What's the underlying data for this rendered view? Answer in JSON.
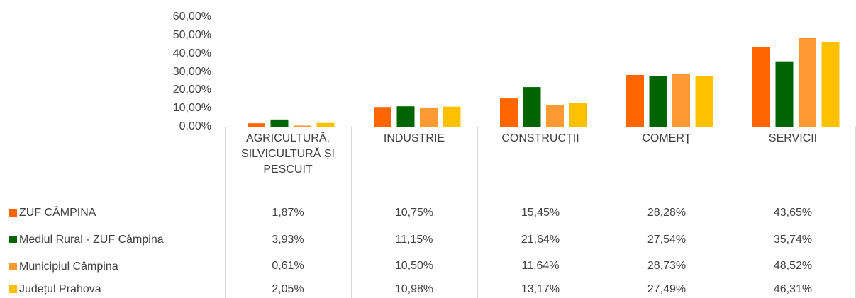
{
  "chart_data": {
    "type": "bar",
    "categories": [
      "AGRICULTURĂ, SILVICULTURĂ ȘI PESCUIT",
      "INDUSTRIE",
      "CONSTRUCȚII",
      "COMERȚ",
      "SERVICII"
    ],
    "series": [
      {
        "name": "ZUF CÂMPINA",
        "color": "#ff6600",
        "values": [
          1.87,
          10.75,
          15.45,
          28.28,
          43.65
        ],
        "value_labels": [
          "1,87%",
          "10,75%",
          "15,45%",
          "28,28%",
          "43,65%"
        ]
      },
      {
        "name": "Mediul Rural - ZUF Câmpina",
        "color": "#006400",
        "values": [
          3.93,
          11.15,
          21.64,
          27.54,
          35.74
        ],
        "value_labels": [
          "3,93%",
          "11,15%",
          "21,64%",
          "27,54%",
          "35,74%"
        ]
      },
      {
        "name": "Municipiul Câmpina",
        "color": "#ff9933",
        "values": [
          0.61,
          10.5,
          11.64,
          28.73,
          48.52
        ],
        "value_labels": [
          "0,61%",
          "10,50%",
          "11,64%",
          "28,73%",
          "48,52%"
        ]
      },
      {
        "name": "Județul Prahova",
        "color": "#ffc000",
        "values": [
          2.05,
          10.98,
          13.17,
          27.49,
          46.31
        ],
        "value_labels": [
          "2,05%",
          "10,98%",
          "13,17%",
          "27,49%",
          "46,31%"
        ]
      }
    ],
    "ylim": [
      0,
      60
    ],
    "yticks": [
      {
        "value": 0,
        "label": "0,00%"
      },
      {
        "value": 10,
        "label": "10,00%"
      },
      {
        "value": 20,
        "label": "20,00%"
      },
      {
        "value": 30,
        "label": "30,00%"
      },
      {
        "value": 40,
        "label": "40,00%"
      },
      {
        "value": 50,
        "label": "50,00%"
      },
      {
        "value": 60,
        "label": "60,00%"
      }
    ],
    "grid": false
  }
}
